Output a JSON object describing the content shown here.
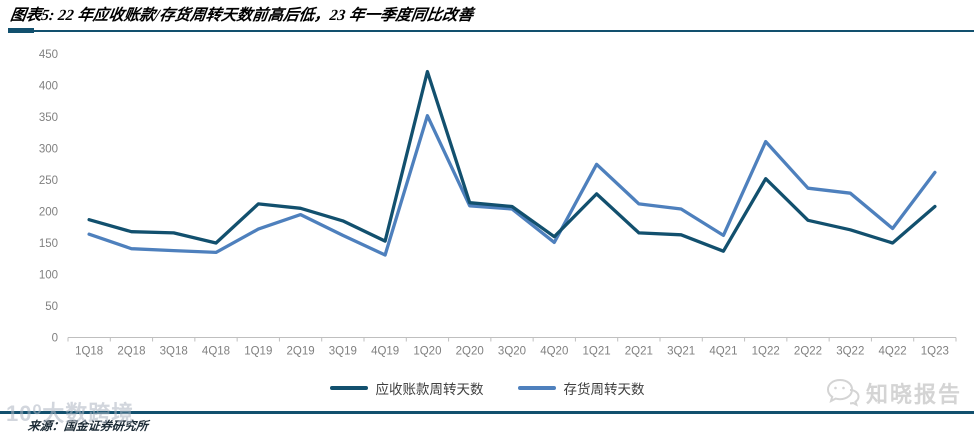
{
  "header": {
    "title": "图表5: 22 年应收账款/存货周转天数前高后低，23 年一季度同比改善"
  },
  "footer": {
    "source": "来源：国金证券研究所"
  },
  "watermarks": {
    "left_text": "10⁰大数跨境",
    "right_text": "知晓报告",
    "right_icon": "wechat-chat-bubbles-icon"
  },
  "colors": {
    "accent_rule": "#12506e",
    "receivables_line": "#12506e",
    "inventory_line": "#4e80bd",
    "axis_line": "#bfbfbf",
    "tick_label": "#808080",
    "legend_text": "#3f3f3f"
  },
  "chart_data": {
    "type": "line",
    "title": "图表5: 22 年应收账款/存货周转天数前高后低，23 年一季度同比改善",
    "categories": [
      "1Q18",
      "2Q18",
      "3Q18",
      "4Q18",
      "1Q19",
      "2Q19",
      "3Q19",
      "4Q19",
      "1Q20",
      "2Q20",
      "3Q20",
      "4Q20",
      "1Q21",
      "2Q21",
      "3Q21",
      "4Q21",
      "1Q22",
      "2Q22",
      "3Q22",
      "4Q22",
      "1Q23"
    ],
    "series": [
      {
        "name": "应收账款周转天数",
        "color": "#12506e",
        "values": [
          187,
          168,
          166,
          150,
          212,
          205,
          185,
          153,
          422,
          214,
          208,
          160,
          228,
          166,
          163,
          137,
          252,
          186,
          171,
          150,
          208
        ]
      },
      {
        "name": "存货周转天数",
        "color": "#4e80bd",
        "values": [
          164,
          141,
          138,
          135,
          172,
          195,
          162,
          131,
          352,
          209,
          204,
          151,
          275,
          212,
          204,
          162,
          311,
          237,
          229,
          173,
          262
        ]
      }
    ],
    "xlabel": "",
    "ylabel": "",
    "ylim": [
      0,
      450
    ],
    "ytick_step": 50,
    "grid": false,
    "legend_position": "bottom"
  }
}
